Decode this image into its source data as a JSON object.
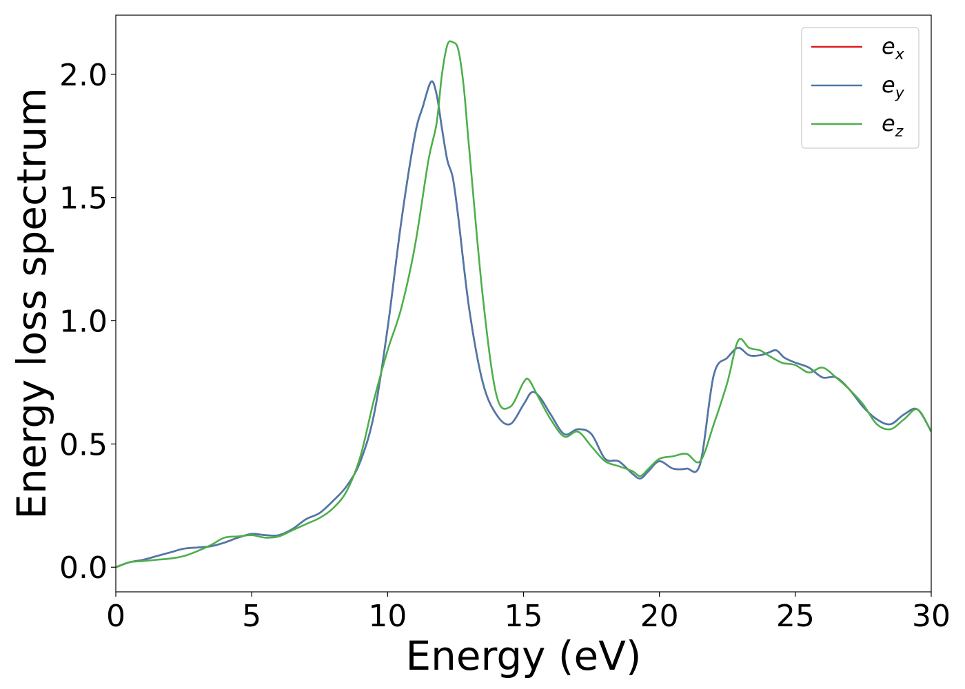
{
  "chart_data": {
    "type": "line",
    "title": "",
    "xlabel": "Energy (eV)",
    "ylabel": "Energy loss spectrum",
    "xlim": [
      0,
      30
    ],
    "ylim": [
      -0.1,
      2.24
    ],
    "xticks": [
      0,
      5,
      10,
      15,
      20,
      25,
      30
    ],
    "xtick_labels": [
      "0",
      "5",
      "10",
      "15",
      "20",
      "25",
      "30"
    ],
    "yticks": [
      0.0,
      0.5,
      1.0,
      1.5,
      2.0
    ],
    "ytick_labels": [
      "0.0",
      "0.5",
      "1.0",
      "1.5",
      "2.0"
    ],
    "grid": false,
    "legend_position": "top-right",
    "series": [
      {
        "name": "e_x",
        "label_base": "e",
        "label_sub": "x",
        "color": "#e41a1c",
        "x": [
          0,
          0.5,
          1,
          1.5,
          2,
          2.5,
          3,
          3.5,
          4,
          4.5,
          5,
          5.5,
          6,
          6.5,
          7,
          7.5,
          8,
          8.5,
          9,
          9.5,
          10,
          10.5,
          11,
          11.3,
          11.6,
          11.8,
          12,
          12.2,
          12.4,
          12.6,
          13,
          13.5,
          14,
          14.5,
          15,
          15.3,
          15.6,
          16,
          16.5,
          17,
          17.5,
          18,
          18.5,
          19,
          19.3,
          19.6,
          20,
          20.5,
          21,
          21.5,
          22,
          22.5,
          22.9,
          23.3,
          23.7,
          24,
          24.3,
          24.6,
          25,
          25.5,
          26,
          26.5,
          27,
          27.5,
          28,
          28.5,
          29,
          29.5,
          30
        ],
        "y": [
          0.0,
          0.02,
          0.03,
          0.045,
          0.06,
          0.075,
          0.08,
          0.085,
          0.1,
          0.12,
          0.135,
          0.13,
          0.13,
          0.155,
          0.195,
          0.22,
          0.27,
          0.33,
          0.43,
          0.62,
          0.97,
          1.4,
          1.75,
          1.87,
          1.97,
          1.92,
          1.78,
          1.65,
          1.58,
          1.42,
          1.05,
          0.75,
          0.62,
          0.58,
          0.66,
          0.71,
          0.69,
          0.62,
          0.54,
          0.56,
          0.54,
          0.44,
          0.43,
          0.38,
          0.36,
          0.39,
          0.43,
          0.4,
          0.4,
          0.42,
          0.78,
          0.85,
          0.89,
          0.86,
          0.86,
          0.87,
          0.88,
          0.85,
          0.83,
          0.81,
          0.77,
          0.77,
          0.72,
          0.65,
          0.6,
          0.58,
          0.62,
          0.64,
          0.55
        ]
      },
      {
        "name": "e_y",
        "label_base": "e",
        "label_sub": "y",
        "color": "#4a7aab",
        "x": [
          0,
          0.5,
          1,
          1.5,
          2,
          2.5,
          3,
          3.5,
          4,
          4.5,
          5,
          5.5,
          6,
          6.5,
          7,
          7.5,
          8,
          8.5,
          9,
          9.5,
          10,
          10.5,
          11,
          11.3,
          11.6,
          11.8,
          12,
          12.2,
          12.4,
          12.6,
          13,
          13.5,
          14,
          14.5,
          15,
          15.3,
          15.6,
          16,
          16.5,
          17,
          17.5,
          18,
          18.5,
          19,
          19.3,
          19.6,
          20,
          20.5,
          21,
          21.5,
          22,
          22.5,
          22.9,
          23.3,
          23.7,
          24,
          24.3,
          24.6,
          25,
          25.5,
          26,
          26.5,
          27,
          27.5,
          28,
          28.5,
          29,
          29.5,
          30
        ],
        "y": [
          0.0,
          0.02,
          0.03,
          0.045,
          0.06,
          0.075,
          0.08,
          0.085,
          0.1,
          0.12,
          0.135,
          0.13,
          0.13,
          0.155,
          0.195,
          0.22,
          0.27,
          0.33,
          0.43,
          0.62,
          0.97,
          1.4,
          1.75,
          1.87,
          1.97,
          1.92,
          1.78,
          1.65,
          1.58,
          1.42,
          1.05,
          0.75,
          0.62,
          0.58,
          0.66,
          0.71,
          0.69,
          0.62,
          0.54,
          0.56,
          0.54,
          0.44,
          0.43,
          0.38,
          0.36,
          0.39,
          0.43,
          0.4,
          0.4,
          0.42,
          0.78,
          0.85,
          0.89,
          0.86,
          0.86,
          0.87,
          0.88,
          0.85,
          0.83,
          0.81,
          0.77,
          0.77,
          0.72,
          0.65,
          0.6,
          0.58,
          0.62,
          0.64,
          0.55
        ]
      },
      {
        "name": "e_z",
        "label_base": "e",
        "label_sub": "z",
        "color": "#4daf4a",
        "x": [
          0,
          0.5,
          1,
          1.5,
          2,
          2.5,
          3,
          3.5,
          4,
          4.5,
          5,
          5.5,
          6,
          6.5,
          7,
          7.5,
          8,
          8.5,
          9,
          9.5,
          10,
          10.5,
          11,
          11.5,
          11.8,
          12,
          12.2,
          12.4,
          12.6,
          12.8,
          13,
          13.5,
          14,
          14.5,
          15,
          15.2,
          15.5,
          16,
          16.5,
          17,
          17.5,
          18,
          18.5,
          19,
          19.3,
          19.6,
          20,
          20.5,
          21,
          21.5,
          22,
          22.5,
          22.9,
          23.3,
          23.7,
          24,
          24.5,
          25,
          25.5,
          26,
          26.5,
          27,
          27.5,
          28,
          28.5,
          29,
          29.5,
          30
        ],
        "y": [
          0.0,
          0.02,
          0.025,
          0.03,
          0.035,
          0.045,
          0.065,
          0.09,
          0.12,
          0.125,
          0.13,
          0.12,
          0.125,
          0.15,
          0.175,
          0.2,
          0.24,
          0.31,
          0.45,
          0.68,
          0.88,
          1.05,
          1.3,
          1.65,
          1.8,
          2.0,
          2.12,
          2.13,
          2.1,
          1.95,
          1.7,
          1.1,
          0.7,
          0.65,
          0.75,
          0.76,
          0.7,
          0.6,
          0.53,
          0.55,
          0.49,
          0.43,
          0.41,
          0.39,
          0.37,
          0.4,
          0.44,
          0.45,
          0.46,
          0.43,
          0.58,
          0.75,
          0.92,
          0.89,
          0.88,
          0.86,
          0.83,
          0.82,
          0.79,
          0.81,
          0.77,
          0.72,
          0.66,
          0.58,
          0.56,
          0.6,
          0.64,
          0.55
        ]
      }
    ]
  }
}
